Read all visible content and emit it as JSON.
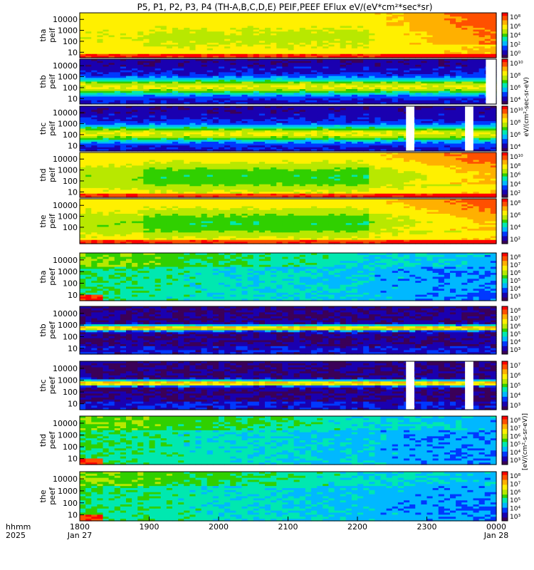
{
  "chart_data": {
    "type": "heatmap",
    "title": "P5, P1, P2, P3, P4 (TH-A,B,C,D,E) PEIF,PEEF EFlux eV/(eV*cm²*sec*sr)",
    "colorbar_label": "[eV/(cm²-s-sr-eV)]",
    "colorbar_ticks_label": "eV/(cm²-sec-sr-eV)",
    "x": {
      "ticks": [
        "1800",
        "1900",
        "2000",
        "2100",
        "2200",
        "2300",
        "0000"
      ],
      "date_left": "Jan 27",
      "date_right": "Jan 28",
      "corner_labels": [
        "hhmm",
        "2025"
      ]
    },
    "y_ticks": [
      "10000",
      "1000",
      "100",
      "10"
    ],
    "colormap": [
      "#3b0058",
      "#1a00b0",
      "#0038ff",
      "#00b8ff",
      "#00e8b0",
      "#30d000",
      "#b8e800",
      "#fff000",
      "#ffb000",
      "#ff5000",
      "#ff0000"
    ],
    "panels": [
      {
        "label": "tha peif",
        "line1": "tha",
        "line2": "peif",
        "type": "ion",
        "cb_ticks": [
          "10⁸",
          "10⁶",
          "10⁴",
          "10²",
          "10⁰"
        ],
        "ticks_shown": [
          "10000",
          "1000",
          "100",
          "10"
        ],
        "bg": "#ff8a00",
        "gaps": []
      },
      {
        "label": "thb peif",
        "line1": "thb",
        "line2": "peif",
        "type": "ion_flat",
        "cb_ticks": [
          "10¹⁰",
          "10⁸",
          "10⁶",
          "10⁴"
        ],
        "ticks_shown": [
          "10000",
          "1000",
          "100",
          "10"
        ],
        "gaps": [
          [
            23.85,
            24.0
          ]
        ]
      },
      {
        "label": "thc peif",
        "line1": "thc",
        "line2": "peif",
        "type": "ion_flat",
        "cb_ticks": [
          "10¹⁰",
          "10⁸",
          "10⁶",
          "10⁴"
        ],
        "ticks_shown": [
          "10000",
          "1000",
          "100",
          "10"
        ],
        "gaps": [
          [
            22.7,
            22.82
          ],
          [
            23.55,
            23.67
          ]
        ]
      },
      {
        "label": "thd peif",
        "line1": "thd",
        "line2": "peif",
        "type": "ion",
        "cb_ticks": [
          "10¹⁰",
          "10⁸",
          "10⁶",
          "10⁴",
          "10²"
        ],
        "ticks_shown": [
          "10000",
          "1000",
          "100",
          "10"
        ],
        "gaps": []
      },
      {
        "label": "the peif",
        "line1": "the",
        "line2": "peif",
        "type": "ion",
        "cb_ticks": [
          "10⁸",
          "10⁶",
          "10⁴",
          "10²"
        ],
        "ticks_shown": [
          "10000",
          "1000",
          "100"
        ],
        "gaps": []
      },
      {
        "label": "tha peef",
        "line1": "tha",
        "line2": "peef",
        "type": "elec",
        "cb_ticks": [
          "10⁸",
          "10⁷",
          "10⁶",
          "10⁵",
          "10⁴",
          "10³"
        ],
        "ticks_shown": [
          "10000",
          "1000",
          "100",
          "10"
        ],
        "gaps": []
      },
      {
        "label": "thb peef",
        "line1": "thb",
        "line2": "peef",
        "type": "elec_flat",
        "cb_ticks": [
          "10⁸",
          "10⁷",
          "10⁶",
          "10⁵",
          "10⁴",
          "10³"
        ],
        "ticks_shown": [
          "10000",
          "1000",
          "100",
          "10"
        ],
        "gaps": []
      },
      {
        "label": "thc peef",
        "line1": "thc",
        "line2": "peef",
        "type": "elec_flat",
        "cb_ticks": [
          "10⁷",
          "10⁶",
          "10⁵",
          "10⁴",
          "10³"
        ],
        "ticks_shown": [
          "10000",
          "1000",
          "100",
          "10"
        ],
        "gaps": [
          [
            22.7,
            22.82
          ],
          [
            23.55,
            23.67
          ]
        ]
      },
      {
        "label": "thd peef",
        "line1": "thd",
        "line2": "peef",
        "type": "elec",
        "cb_ticks": [
          "10⁸",
          "10⁷",
          "10⁶",
          "10⁵",
          "10⁴",
          "10³"
        ],
        "ticks_shown": [
          "10000",
          "1000",
          "100",
          "10"
        ],
        "gaps": []
      },
      {
        "label": "the peef",
        "line1": "the",
        "line2": "peef",
        "type": "elec",
        "cb_ticks": [
          "10⁸",
          "10⁷",
          "10⁶",
          "10⁵",
          "10⁴",
          "10³"
        ],
        "ticks_shown": [
          "10000",
          "1000",
          "100",
          "10"
        ],
        "gaps": []
      }
    ]
  }
}
